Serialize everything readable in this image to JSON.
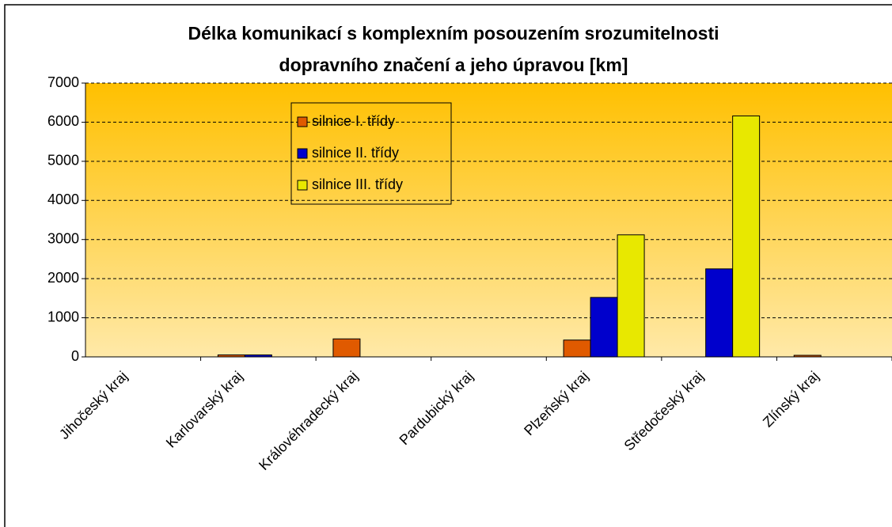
{
  "chart_data": {
    "type": "bar",
    "title": [
      "Délka komunikací s komplexním posouzením srozumitelnosti",
      "dopravního značení a jeho úpravou [km]"
    ],
    "categories": [
      "Jihočeský kraj",
      "Karlovarský kraj",
      "Královéhradecký kraj",
      "Pardubický kraj",
      "Plzeňský kraj",
      "Středočeský kraj",
      "Zlínský kraj"
    ],
    "series": [
      {
        "name": "silnice I. třídy",
        "color": "#e05a00",
        "values": [
          0,
          50,
          460,
          0,
          430,
          0,
          40
        ]
      },
      {
        "name": "silnice II. třídy",
        "color": "#0000cc",
        "values": [
          0,
          50,
          0,
          0,
          1520,
          2250,
          0
        ]
      },
      {
        "name": "silnice III. třídy",
        "color": "#e8e800",
        "values": [
          0,
          0,
          0,
          0,
          3120,
          6160,
          0
        ]
      }
    ],
    "ylim": [
      0,
      7000
    ],
    "yticks": [
      0,
      1000,
      2000,
      3000,
      4000,
      5000,
      6000,
      7000
    ],
    "grid": true
  }
}
